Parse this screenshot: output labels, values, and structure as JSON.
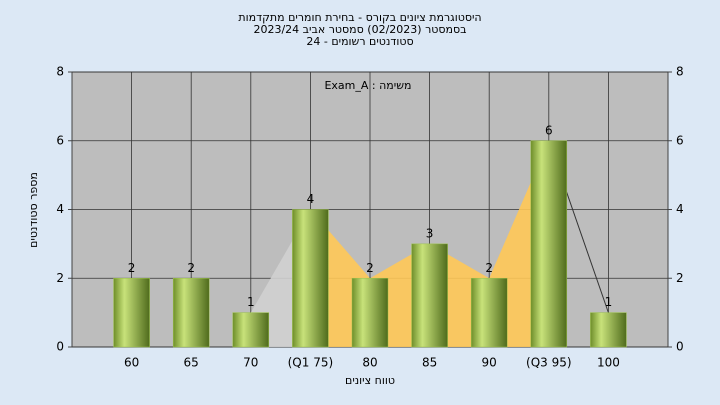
{
  "chart_data": {
    "type": "bar",
    "title": [
      "היסטוגרמת ציונים בקורס - בחירת חומרים מתקדמות",
      "בסמסטר (02/2023) סמסטר אביב 2023/24",
      "סטודנטים רשומים - 24"
    ],
    "annotation": "משימה : Exam_A",
    "x_label": "טווח ציונים",
    "y_label": "מספר סטודנטים",
    "categories": [
      "60",
      "65",
      "70",
      "(Q1 75)",
      "80",
      "85",
      "90",
      "(Q3 95)",
      "100"
    ],
    "values": [
      2,
      2,
      1,
      4,
      2,
      3,
      2,
      6,
      1
    ],
    "color": "#9cc24a",
    "quartile_color": "#ffc857",
    "ylim": [
      0,
      8
    ],
    "yticks": [
      0,
      2,
      4,
      6,
      8
    ],
    "y2lim": [
      0,
      8
    ],
    "y2ticks": [
      0,
      2,
      4,
      6,
      8
    ],
    "grid": true
  }
}
